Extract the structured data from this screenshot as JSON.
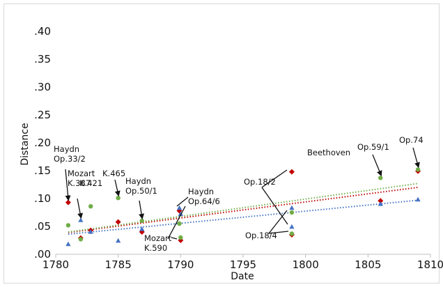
{
  "chart_data": {
    "type": "scatter",
    "xlabel": "Date",
    "ylabel": "Distance",
    "xlim": [
      1780,
      1810
    ],
    "ylim": [
      0,
      0.4
    ],
    "x_ticks": [
      "1780",
      "1785",
      "1790",
      "1795",
      "1800",
      "1805",
      "1810"
    ],
    "y_ticks": [
      ".00",
      ".05",
      ".10",
      ".15",
      ".20",
      ".25",
      ".30",
      ".35",
      ".40"
    ],
    "grid": false,
    "series": [
      {
        "marker": "diamond",
        "color": "#c00000",
        "trend_color": "#c00000",
        "points": [
          {
            "x": 1781,
            "y": 0.093
          },
          {
            "x": 1782,
            "y": 0.029
          },
          {
            "x": 1782.8,
            "y": 0.043
          },
          {
            "x": 1785,
            "y": 0.058
          },
          {
            "x": 1786.9,
            "y": 0.04
          },
          {
            "x": 1789.9,
            "y": 0.078
          },
          {
            "x": 1790,
            "y": 0.025
          },
          {
            "x": 1798.9,
            "y": 0.148
          },
          {
            "x": 1798.9,
            "y": 0.035
          },
          {
            "x": 1806,
            "y": 0.096
          },
          {
            "x": 1809,
            "y": 0.149
          }
        ],
        "trend": [
          [
            1781,
            0.039
          ],
          [
            1809,
            0.12
          ]
        ]
      },
      {
        "marker": "circle",
        "color": "#70ad47",
        "trend_color": "#70ad47",
        "points": [
          {
            "x": 1781,
            "y": 0.052
          },
          {
            "x": 1782,
            "y": 0.027
          },
          {
            "x": 1782.8,
            "y": 0.086
          },
          {
            "x": 1785,
            "y": 0.101
          },
          {
            "x": 1786.9,
            "y": 0.06
          },
          {
            "x": 1789.9,
            "y": 0.055
          },
          {
            "x": 1790,
            "y": 0.03
          },
          {
            "x": 1798.9,
            "y": 0.075
          },
          {
            "x": 1798.9,
            "y": 0.037
          },
          {
            "x": 1806,
            "y": 0.137
          },
          {
            "x": 1809,
            "y": 0.152
          }
        ],
        "trend": [
          [
            1781,
            0.04
          ],
          [
            1809,
            0.127
          ]
        ]
      },
      {
        "marker": "triangle",
        "color": "#4472c4",
        "trend_color": "#4472c4",
        "points": [
          {
            "x": 1781,
            "y": 0.018
          },
          {
            "x": 1782,
            "y": 0.061
          },
          {
            "x": 1782.8,
            "y": 0.04
          },
          {
            "x": 1785,
            "y": 0.024
          },
          {
            "x": 1786.9,
            "y": 0.045
          },
          {
            "x": 1789.9,
            "y": 0.083
          },
          {
            "x": 1790,
            "y": 0.072
          },
          {
            "x": 1798.9,
            "y": 0.083
          },
          {
            "x": 1798.9,
            "y": 0.049
          },
          {
            "x": 1806,
            "y": 0.09
          },
          {
            "x": 1809,
            "y": 0.098
          }
        ],
        "trend": [
          [
            1781,
            0.036
          ],
          [
            1809,
            0.097
          ]
        ]
      }
    ],
    "annotations": [
      {
        "lines": [
          "Haydn",
          "Op.33/2"
        ],
        "anchor": [
          1781,
          0.093
        ]
      },
      {
        "lines": [
          "Mozart",
          "K.387"
        ],
        "anchor": [
          1782,
          0.061
        ]
      },
      {
        "lines": [
          "K.421"
        ],
        "anchor": [
          1782.8,
          0.086
        ]
      },
      {
        "lines": [
          "K.465"
        ],
        "anchor": [
          1785,
          0.101
        ]
      },
      {
        "lines": [
          "Haydn",
          "Op.50/1"
        ],
        "anchor": [
          1786.9,
          0.06
        ]
      },
      {
        "lines": [
          "Haydn",
          "Op.64/6"
        ],
        "anchor": [
          1789.9,
          0.083
        ]
      },
      {
        "lines": [
          "Mozart",
          "K.590"
        ],
        "anchor": [
          1790,
          0.025
        ]
      },
      {
        "lines": [
          "Op.18/2"
        ],
        "anchor": [
          1798.9,
          0.148
        ]
      },
      {
        "lines": [
          "Op.18/4"
        ],
        "anchor": [
          1798.9,
          0.035
        ]
      },
      {
        "lines": [
          "Beethoven"
        ],
        "anchor": null
      },
      {
        "lines": [
          "Op.59/1"
        ],
        "anchor": [
          1806,
          0.137
        ]
      },
      {
        "lines": [
          "Op.74"
        ],
        "anchor": [
          1809,
          0.152
        ]
      }
    ]
  }
}
